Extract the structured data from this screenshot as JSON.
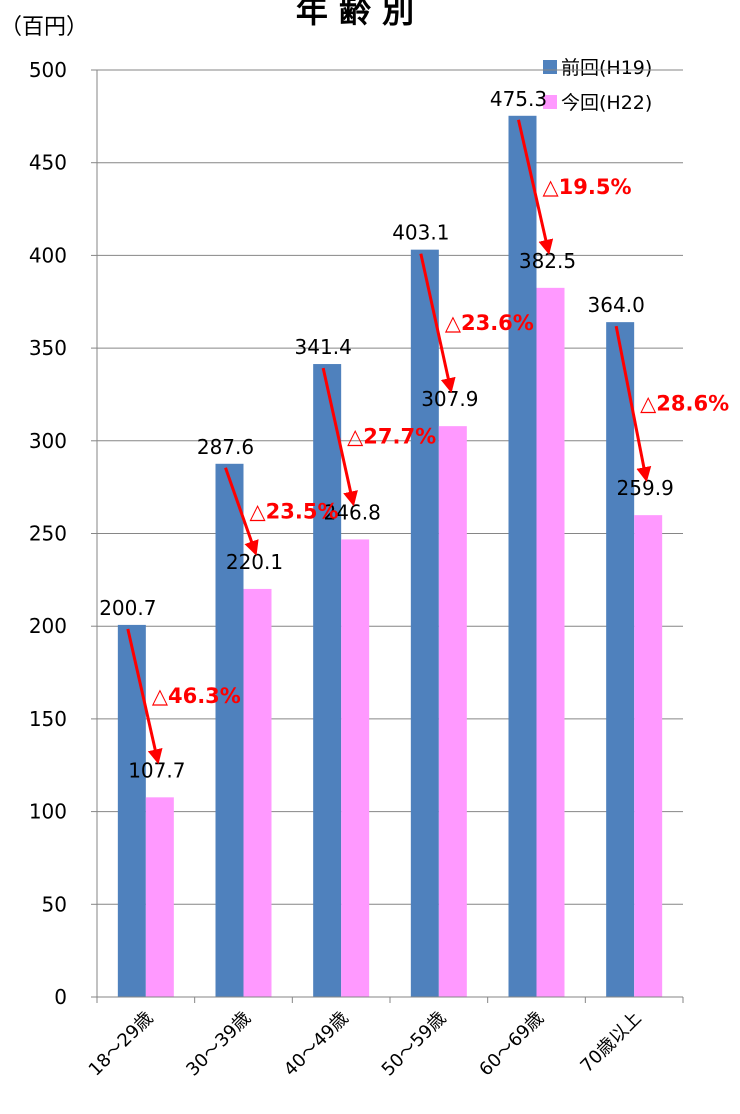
{
  "chart_data": {
    "type": "bar",
    "title": "年 齢 別",
    "ylabel": "（百円）",
    "xlabel": "",
    "ylim": [
      0,
      500
    ],
    "y_ticks": [
      0,
      50,
      100,
      150,
      200,
      250,
      300,
      350,
      400,
      450,
      500
    ],
    "categories": [
      "18～29歳",
      "30～39歳",
      "40～49歳",
      "50～59歳",
      "60～69歳",
      "70歳以上"
    ],
    "series": [
      {
        "name": "前回(H19)",
        "color": "#4f81bd",
        "values": [
          200.7,
          287.6,
          341.4,
          403.1,
          475.3,
          364.0
        ],
        "labels": [
          "200.7",
          "287.6",
          "341.4",
          "403.1",
          "475.3",
          "364.0"
        ]
      },
      {
        "name": "今回(H22)",
        "color": "#ff99ff",
        "values": [
          107.7,
          220.1,
          246.8,
          307.9,
          382.5,
          259.9
        ],
        "labels": [
          "107.7",
          "220.1",
          "246.8",
          "307.9",
          "382.5",
          "259.9"
        ]
      }
    ],
    "changes": [
      "△46.3%",
      "△23.5%",
      "△27.7%",
      "△23.6%",
      "△19.5%",
      "△28.6%"
    ],
    "annotation_color": "#ff0000",
    "legend_position": "top-right",
    "grid": true
  }
}
